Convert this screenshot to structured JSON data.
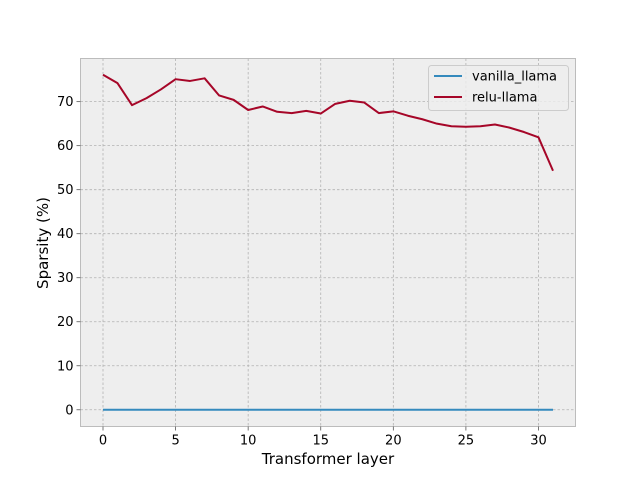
{
  "chart_data": {
    "type": "line",
    "title": "",
    "xlabel": "Transformer layer",
    "ylabel": "Sparsity (%)",
    "xlim": [
      -1.55,
      32.55
    ],
    "ylim": [
      -3.8,
      79.8
    ],
    "xticks": [
      0,
      5,
      10,
      15,
      20,
      25,
      30
    ],
    "yticks": [
      0,
      10,
      20,
      30,
      40,
      50,
      60,
      70
    ],
    "grid": true,
    "legend_position": "top-right",
    "x": [
      0,
      1,
      2,
      3,
      4,
      5,
      6,
      7,
      8,
      9,
      10,
      11,
      12,
      13,
      14,
      15,
      16,
      17,
      18,
      19,
      20,
      21,
      22,
      23,
      24,
      25,
      26,
      27,
      28,
      29,
      30,
      31
    ],
    "series": [
      {
        "name": "vanilla_llama",
        "color": "#348abd",
        "values": [
          0,
          0,
          0,
          0,
          0,
          0,
          0,
          0,
          0,
          0,
          0,
          0,
          0,
          0,
          0,
          0,
          0,
          0,
          0,
          0,
          0,
          0,
          0,
          0,
          0,
          0,
          0,
          0,
          0,
          0,
          0,
          0
        ]
      },
      {
        "name": "relu-llama",
        "color": "#a60628",
        "values": [
          76.1,
          74.2,
          69.2,
          70.8,
          72.8,
          75.1,
          74.7,
          75.3,
          71.4,
          70.4,
          68.1,
          68.9,
          67.7,
          67.4,
          67.9,
          67.3,
          69.5,
          70.2,
          69.8,
          67.4,
          67.8,
          66.8,
          66.0,
          65.0,
          64.4,
          64.3,
          64.4,
          64.8,
          64.1,
          63.1,
          61.9,
          54.3
        ]
      }
    ]
  }
}
